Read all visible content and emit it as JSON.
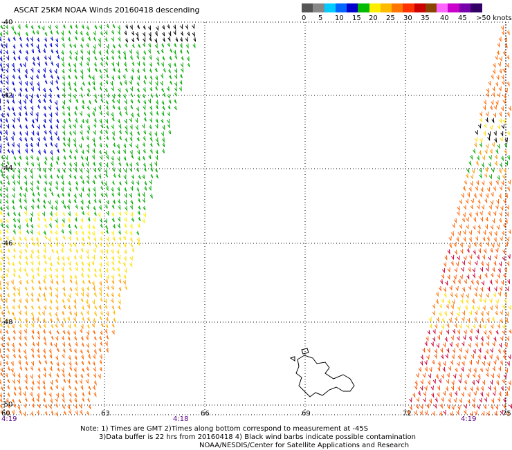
{
  "title": "ASCAT 25KM NOAA Winds 20160418 descending",
  "colorbar": {
    "swatches": [
      "#555555",
      "#888888",
      "#00ccff",
      "#0066ff",
      "#0000cc",
      "#00bb00",
      "#ffee00",
      "#ffbb00",
      "#ff7700",
      "#ff3300",
      "#cc0000",
      "#884400",
      "#ff66ff",
      "#cc00cc",
      "#7700aa",
      "#330066"
    ],
    "labels": [
      "0",
      "5",
      "10",
      "15",
      "20",
      "25",
      "30",
      "35",
      "40",
      "45",
      ">50 knots"
    ]
  },
  "map": {
    "lon_labels": [
      "60",
      "63",
      "66",
      "69",
      "72",
      "75"
    ],
    "lat_labels": [
      "-40",
      "-42",
      "-44",
      "-46",
      "-48",
      "-50"
    ],
    "time_labels": [
      "4:19",
      "4:18",
      "4:19"
    ]
  },
  "notes": [
    "Note: 1) Times are GMT 2)Times along bottom correspond to measurement at -45S",
    "3)Data buffer is 22 hrs from 20160418 4) Black wind barbs indicate possible contamination",
    "NOAA/NESDIS/Center for Satellite Applications and Research"
  ]
}
